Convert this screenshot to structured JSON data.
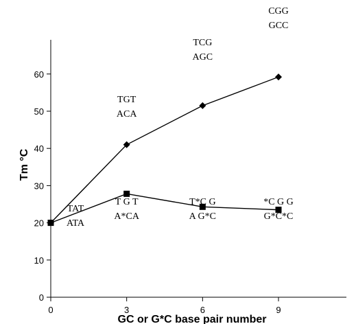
{
  "chart_data": {
    "type": "line",
    "xlabel": "GC or G*C base pair number",
    "ylabel": "Tm °C",
    "x": [
      0,
      3,
      6,
      9
    ],
    "xticks": [
      "0",
      "3",
      "6",
      "9"
    ],
    "ylim": [
      0,
      60
    ],
    "yticks": [
      "0",
      "10",
      "20",
      "30",
      "40",
      "50",
      "60"
    ],
    "grid": false,
    "series": [
      {
        "marker": "diamond",
        "values": [
          20,
          41,
          51.5,
          59.2
        ]
      },
      {
        "marker": "square",
        "values": [
          20,
          27.8,
          24.3,
          23.5
        ]
      }
    ],
    "annotations": {
      "top": [
        {
          "x": 3,
          "line1": "TGT",
          "line2": "ACA"
        },
        {
          "x": 6,
          "line1": "TCG",
          "line2": "AGC"
        },
        {
          "x": 9,
          "line1": "CGG",
          "line2": "GCC"
        }
      ],
      "bottom": [
        {
          "x": 0,
          "line1": "TAT",
          "line2": "ATA"
        },
        {
          "x": 3,
          "line1": "T G T",
          "line2": "A*CA"
        },
        {
          "x": 6,
          "line1": "T*C G",
          "line2": "A G*C"
        },
        {
          "x": 9,
          "line1": "*C G G",
          "line2": "G*C*C"
        }
      ]
    }
  }
}
